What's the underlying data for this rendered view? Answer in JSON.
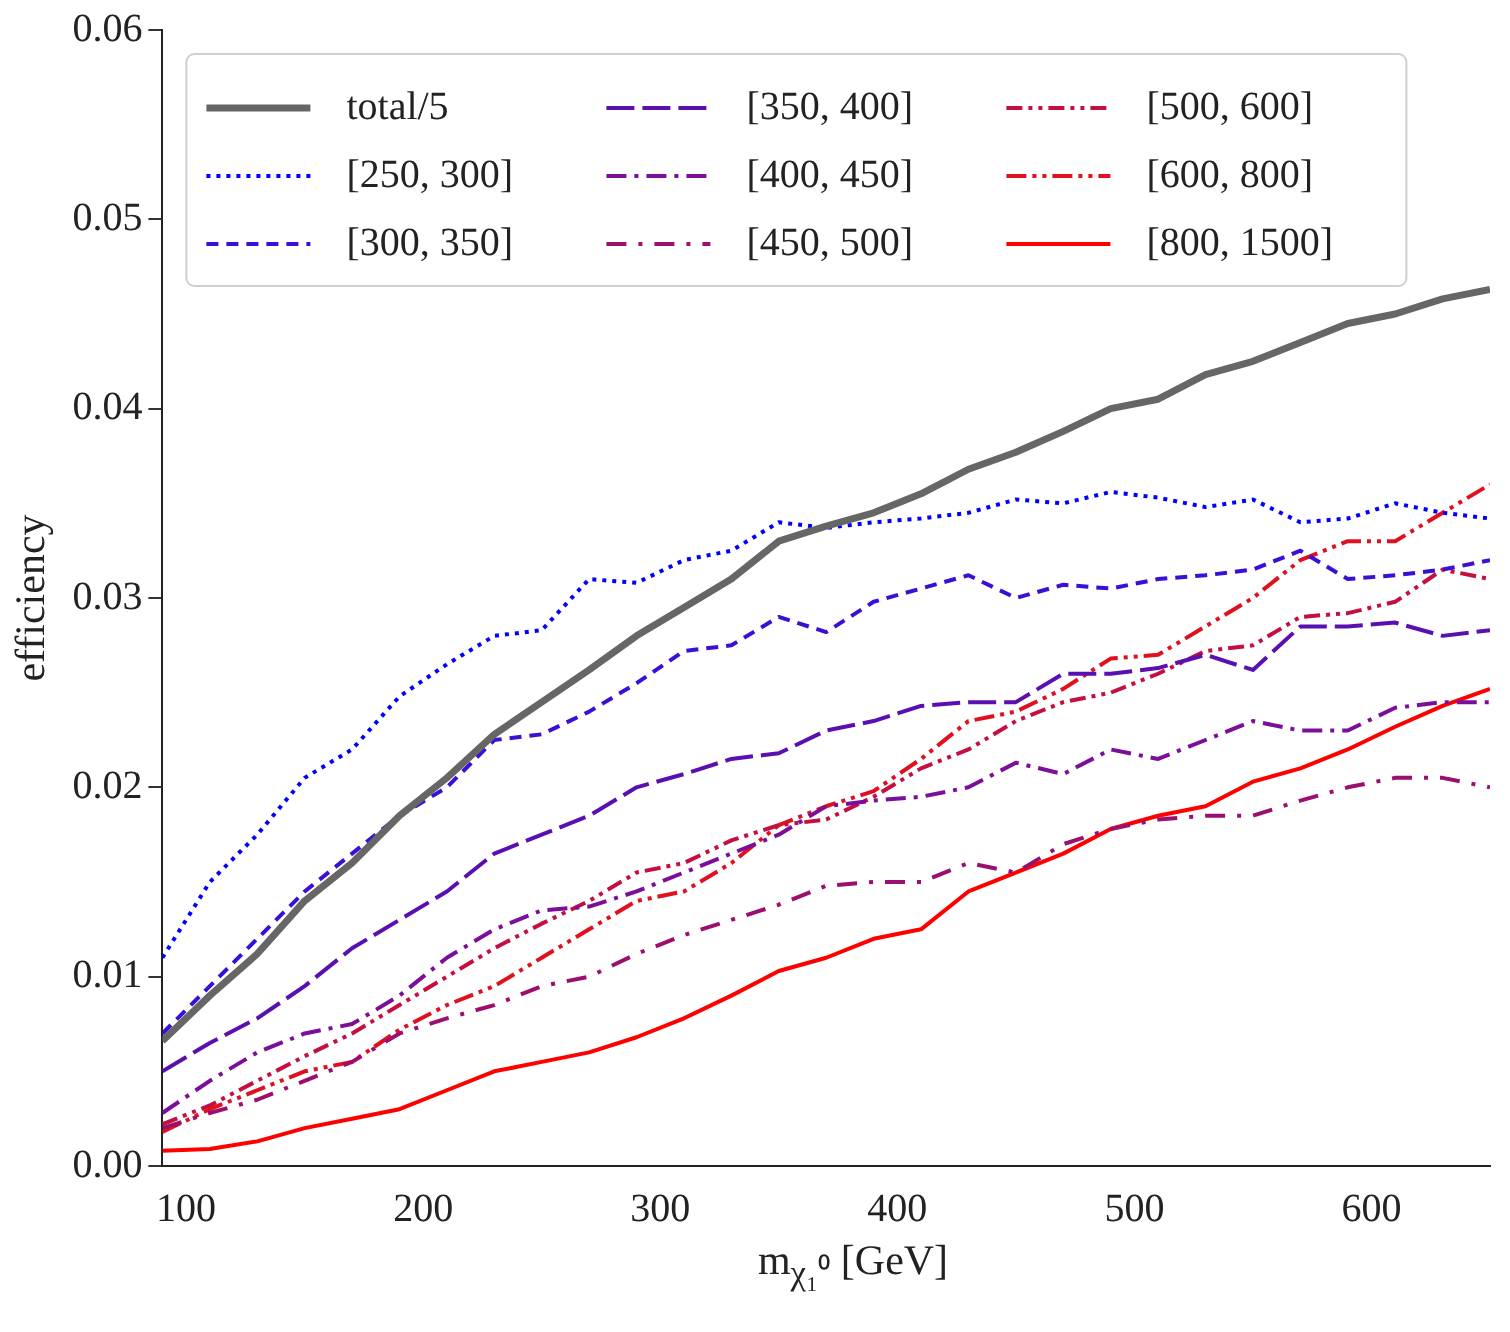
{
  "chart_data": {
    "type": "line",
    "xlabel": "m$_{χ₁⁰}$ [GeV]",
    "ylabel": "efficiency",
    "x": [
      90,
      110,
      130,
      150,
      170,
      190,
      210,
      230,
      250,
      270,
      290,
      310,
      330,
      350,
      370,
      390,
      410,
      430,
      450,
      470,
      490,
      510,
      530,
      550,
      570,
      590,
      610,
      630,
      650
    ],
    "xlim": [
      90,
      650
    ],
    "xticks": [
      100,
      200,
      300,
      400,
      500,
      600
    ],
    "ylim": [
      0,
      0.06
    ],
    "yticks": [
      {
        "value": 0,
        "label": "0.00"
      },
      {
        "value": 0.01,
        "label": "0.01"
      },
      {
        "value": 0.02,
        "label": "0.02"
      },
      {
        "value": 0.03,
        "label": "0.03"
      },
      {
        "value": 0.04,
        "label": "0.04"
      },
      {
        "value": 0.05,
        "label": "0.05"
      },
      {
        "value": 0.06,
        "label": "0.06"
      }
    ],
    "grid": false,
    "legend": "top left",
    "marker": "none",
    "series": [
      {
        "name": "total/5",
        "color": "#666666",
        "line_style": "solid",
        "values": [
          0.0066,
          0.009,
          0.0112,
          0.014,
          0.016,
          0.0185,
          0.0205,
          0.0228,
          0.0245,
          0.0262,
          0.028,
          0.0295,
          0.031,
          0.033,
          0.0338,
          0.0345,
          0.0355,
          0.0368,
          0.0377,
          0.0388,
          0.04,
          0.0405,
          0.0418,
          0.0425,
          0.0435,
          0.0445,
          0.045,
          0.0458,
          0.0463
        ]
      },
      {
        "name": "[250, 300]",
        "color": "#0000ff",
        "line_style": "dotted",
        "values": [
          0.011,
          0.015,
          0.0175,
          0.0205,
          0.022,
          0.0248,
          0.0265,
          0.028,
          0.0283,
          0.031,
          0.0308,
          0.032,
          0.0325,
          0.034,
          0.0337,
          0.034,
          0.0342,
          0.0345,
          0.0352,
          0.035,
          0.0356,
          0.0353,
          0.0348,
          0.0352,
          0.034,
          0.0342,
          0.035,
          0.0345,
          0.0342
        ]
      },
      {
        "name": "[300, 350]",
        "color": "#3b0fd6",
        "line_style": "dashed",
        "values": [
          0.007,
          0.0095,
          0.012,
          0.0145,
          0.0165,
          0.0185,
          0.02,
          0.0225,
          0.0228,
          0.024,
          0.0255,
          0.0272,
          0.0275,
          0.029,
          0.0282,
          0.0298,
          0.0305,
          0.0312,
          0.03,
          0.0307,
          0.0305,
          0.031,
          0.0312,
          0.0315,
          0.0325,
          0.031,
          0.0312,
          0.0315,
          0.032
        ]
      },
      {
        "name": "[350, 400]",
        "color": "#5a0fb0",
        "line_style": "dashed",
        "values": [
          0.005,
          0.0065,
          0.0078,
          0.0095,
          0.0115,
          0.013,
          0.0145,
          0.0165,
          0.0175,
          0.0185,
          0.02,
          0.0207,
          0.0215,
          0.0218,
          0.023,
          0.0235,
          0.0243,
          0.0245,
          0.0245,
          0.026,
          0.026,
          0.0263,
          0.027,
          0.0262,
          0.0285,
          0.0285,
          0.0287,
          0.028,
          0.0283
        ]
      },
      {
        "name": "[400, 450]",
        "color": "#7b0f9a",
        "line_style": "dashed",
        "values": [
          0.0028,
          0.0045,
          0.006,
          0.007,
          0.0075,
          0.009,
          0.011,
          0.0125,
          0.0135,
          0.0137,
          0.0145,
          0.0155,
          0.0165,
          0.0175,
          0.019,
          0.0193,
          0.0195,
          0.02,
          0.0213,
          0.0207,
          0.022,
          0.0215,
          0.0225,
          0.0235,
          0.023,
          0.023,
          0.0242,
          0.0245,
          0.0245
        ]
      },
      {
        "name": "[450, 500]",
        "color": "#9b0f6e",
        "line_style": "dashed",
        "values": [
          0.002,
          0.0028,
          0.0035,
          0.0045,
          0.0055,
          0.007,
          0.0078,
          0.0085,
          0.0095,
          0.01,
          0.0112,
          0.0122,
          0.013,
          0.0138,
          0.0148,
          0.015,
          0.015,
          0.016,
          0.0155,
          0.017,
          0.0178,
          0.0183,
          0.0185,
          0.0185,
          0.0193,
          0.02,
          0.0205,
          0.0205,
          0.02
        ]
      },
      {
        "name": "[500, 600]",
        "color": "#c40f40",
        "line_style": "dashed",
        "values": [
          0.0022,
          0.0032,
          0.0045,
          0.0058,
          0.007,
          0.0085,
          0.01,
          0.0115,
          0.0128,
          0.014,
          0.0155,
          0.016,
          0.0172,
          0.018,
          0.0183,
          0.0195,
          0.021,
          0.022,
          0.0235,
          0.0245,
          0.025,
          0.026,
          0.0272,
          0.0275,
          0.029,
          0.0292,
          0.0298,
          0.0315,
          0.031
        ]
      },
      {
        "name": "[600, 800]",
        "color": "#e0101e",
        "line_style": "dashed",
        "values": [
          0.0018,
          0.003,
          0.004,
          0.005,
          0.0055,
          0.0072,
          0.0085,
          0.0095,
          0.011,
          0.0125,
          0.014,
          0.0145,
          0.016,
          0.018,
          0.019,
          0.0198,
          0.0215,
          0.0235,
          0.024,
          0.0252,
          0.0268,
          0.027,
          0.0285,
          0.03,
          0.032,
          0.033,
          0.033,
          0.0345,
          0.036
        ]
      },
      {
        "name": "[800, 1500]",
        "color": "#ff0000",
        "line_style": "solid",
        "values": [
          0.0008,
          0.0009,
          0.0013,
          0.002,
          0.0025,
          0.003,
          0.004,
          0.005,
          0.0055,
          0.006,
          0.0068,
          0.0078,
          0.009,
          0.0103,
          0.011,
          0.012,
          0.0125,
          0.0145,
          0.0155,
          0.0165,
          0.0178,
          0.0185,
          0.019,
          0.0203,
          0.021,
          0.022,
          0.0232,
          0.0243,
          0.0252
        ]
      }
    ]
  }
}
